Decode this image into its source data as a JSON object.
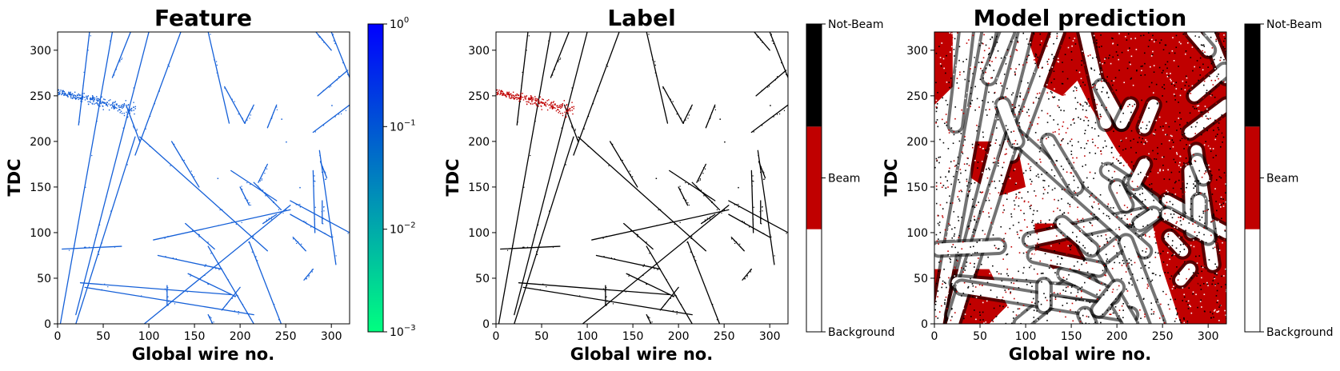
{
  "chart_data": [
    {
      "type": "heatmap",
      "title": "Feature",
      "xlabel": "Global wire no.",
      "ylabel": "TDC",
      "xlim": [
        0,
        320
      ],
      "ylim": [
        0,
        320
      ],
      "xticks": [
        0,
        50,
        100,
        150,
        200,
        250,
        300
      ],
      "yticks": [
        0,
        50,
        100,
        150,
        200,
        250,
        300
      ],
      "colorbar": {
        "scale": "log",
        "range": [
          0.001,
          1
        ],
        "colormap": "winter",
        "color_low": "#00ff80",
        "color_high": "#0000ff",
        "ticks": [
          {
            "value": 0.001,
            "base": "10",
            "exp": "−3"
          },
          {
            "value": 0.01,
            "base": "10",
            "exp": "−2"
          },
          {
            "value": 0.1,
            "base": "10",
            "exp": "−1"
          },
          {
            "value": 1,
            "base": "10",
            "exp": "0"
          }
        ]
      },
      "tracks": [
        {
          "from": [
            3,
            0
          ],
          "to": [
            60,
            320
          ]
        },
        {
          "from": [
            20,
            10
          ],
          "to": [
            100,
            320
          ]
        },
        {
          "from": [
            85,
            185
          ],
          "to": [
            135,
            320
          ]
        },
        {
          "from": [
            35,
            320
          ],
          "to": [
            23,
            218
          ]
        },
        {
          "from": [
            60,
            270
          ],
          "to": [
            80,
            320
          ]
        },
        {
          "from": [
            20,
            0
          ],
          "to": [
            85,
            205
          ]
        },
        {
          "from": [
            5,
            82
          ],
          "to": [
            70,
            85
          ]
        },
        {
          "from": [
            105,
            92
          ],
          "to": [
            255,
            125
          ]
        },
        {
          "from": [
            95,
            0
          ],
          "to": [
            255,
            130
          ]
        },
        {
          "from": [
            25,
            45
          ],
          "to": [
            190,
            32
          ]
        },
        {
          "from": [
            30,
            40
          ],
          "to": [
            215,
            10
          ]
        },
        {
          "from": [
            90,
            205
          ],
          "to": [
            230,
            80
          ]
        },
        {
          "from": [
            255,
            135
          ],
          "to": [
            320,
            100
          ]
        },
        {
          "from": [
            125,
            200
          ],
          "to": [
            155,
            150
          ]
        },
        {
          "from": [
            165,
            320
          ],
          "to": [
            188,
            220
          ]
        },
        {
          "from": [
            183,
            260
          ],
          "to": [
            205,
            220
          ]
        },
        {
          "from": [
            190,
            168
          ],
          "to": [
            240,
            135
          ]
        },
        {
          "from": [
            165,
            85
          ],
          "to": [
            215,
            0
          ]
        },
        {
          "from": [
            210,
            90
          ],
          "to": [
            245,
            0
          ]
        },
        {
          "from": [
            280,
            210
          ],
          "to": [
            320,
            240
          ]
        },
        {
          "from": [
            300,
            320
          ],
          "to": [
            320,
            270
          ]
        },
        {
          "from": [
            285,
            250
          ],
          "to": [
            318,
            278
          ]
        },
        {
          "from": [
            283,
            320
          ],
          "to": [
            300,
            300
          ]
        },
        {
          "from": [
            287,
            190
          ],
          "to": [
            305,
            65
          ]
        },
        {
          "from": [
            280,
            168
          ],
          "to": [
            282,
            100
          ]
        },
        {
          "from": [
            288,
            178
          ],
          "to": [
            295,
            160
          ]
        },
        {
          "from": [
            290,
            135
          ],
          "to": [
            290,
            110
          ]
        },
        {
          "from": [
            258,
            95
          ],
          "to": [
            272,
            80
          ]
        },
        {
          "from": [
            270,
            48
          ],
          "to": [
            280,
            60
          ]
        },
        {
          "from": [
            140,
            110
          ],
          "to": [
            172,
            82
          ]
        },
        {
          "from": [
            143,
            55
          ],
          "to": [
            195,
            30
          ]
        },
        {
          "from": [
            120,
            42
          ],
          "to": [
            120,
            20
          ]
        },
        {
          "from": [
            215,
            155
          ],
          "to": [
            245,
            125
          ]
        },
        {
          "from": [
            165,
            10
          ],
          "to": [
            170,
            0
          ]
        },
        {
          "from": [
            255,
            120
          ],
          "to": [
            300,
            95
          ]
        },
        {
          "from": [
            230,
            215
          ],
          "to": [
            240,
            240
          ]
        },
        {
          "from": [
            225,
            110
          ],
          "to": [
            240,
            120
          ]
        },
        {
          "from": [
            75,
            240
          ],
          "to": [
            90,
            200
          ]
        },
        {
          "from": [
            110,
            75
          ],
          "to": [
            180,
            60
          ]
        },
        {
          "from": [
            180,
            15
          ],
          "to": [
            200,
            40
          ]
        },
        {
          "from": [
            200,
            150
          ],
          "to": [
            210,
            130
          ]
        },
        {
          "from": [
            220,
            155
          ],
          "to": [
            230,
            175
          ]
        },
        {
          "from": [
            205,
            220
          ],
          "to": [
            215,
            240
          ]
        }
      ],
      "beam_blob": {
        "x_range": [
          0,
          85
        ],
        "y_center": 245,
        "width": 8
      },
      "noise_points": [
        [
          175,
          160
        ],
        [
          265,
          150
        ],
        [
          245,
          225
        ],
        [
          300,
          240
        ],
        [
          250,
          200
        ]
      ]
    },
    {
      "type": "heatmap",
      "title": "Label",
      "xlabel": "Global wire no.",
      "ylabel": "TDC",
      "xlim": [
        0,
        320
      ],
      "ylim": [
        0,
        320
      ],
      "xticks": [
        0,
        50,
        100,
        150,
        200,
        250,
        300
      ],
      "yticks": [
        0,
        50,
        100,
        150,
        200,
        250,
        300
      ],
      "colorbar": {
        "type": "categorical",
        "categories": [
          "Background",
          "Beam",
          "Not-Beam"
        ],
        "colors": [
          "#ffffff",
          "#c00000",
          "#000000"
        ]
      }
    },
    {
      "type": "heatmap",
      "title": "Model prediction",
      "xlabel": "Global wire no.",
      "ylabel": "TDC",
      "xlim": [
        0,
        320
      ],
      "ylim": [
        0,
        320
      ],
      "xticks": [
        0,
        50,
        100,
        150,
        200,
        250,
        300
      ],
      "yticks": [
        0,
        50,
        100,
        150,
        200,
        250,
        300
      ],
      "colorbar": {
        "type": "categorical",
        "categories": [
          "Background",
          "Beam",
          "Not-Beam"
        ],
        "colors": [
          "#ffffff",
          "#c00000",
          "#000000"
        ]
      },
      "beam_regions": [
        {
          "polygon": [
            [
              100,
              320
            ],
            [
              160,
              320
            ],
            [
              160,
              270
            ],
            [
              140,
              250
            ],
            [
              120,
              260
            ]
          ]
        },
        {
          "polygon": [
            [
              160,
              320
            ],
            [
              320,
              320
            ],
            [
              320,
              0
            ],
            [
              270,
              0
            ],
            [
              250,
              60
            ],
            [
              230,
              150
            ],
            [
              200,
              190
            ],
            [
              170,
              240
            ],
            [
              150,
              280
            ]
          ]
        },
        {
          "polygon": [
            [
              0,
              320
            ],
            [
              20,
              320
            ],
            [
              20,
              260
            ],
            [
              0,
              240
            ]
          ]
        },
        {
          "polygon": [
            [
              40,
              200
            ],
            [
              90,
              200
            ],
            [
              100,
              150
            ],
            [
              70,
              140
            ],
            [
              40,
              160
            ]
          ]
        },
        {
          "polygon": [
            [
              0,
              60
            ],
            [
              60,
              60
            ],
            [
              80,
              20
            ],
            [
              60,
              0
            ],
            [
              0,
              0
            ]
          ]
        },
        {
          "polygon": [
            [
              110,
              110
            ],
            [
              160,
              110
            ],
            [
              165,
              70
            ],
            [
              130,
              60
            ],
            [
              110,
              80
            ]
          ]
        }
      ]
    }
  ]
}
